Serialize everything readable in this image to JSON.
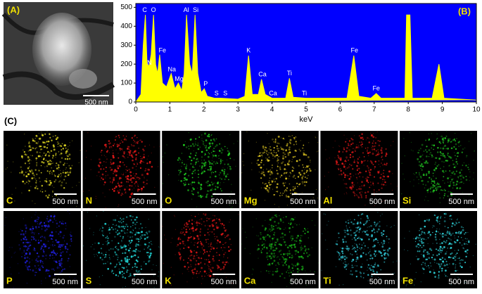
{
  "panel_a": {
    "label": "(A)",
    "scale_bar": "500 nm"
  },
  "chart_data": {
    "type": "area",
    "label": "(B)",
    "xlabel": "keV",
    "x": [
      0,
      0.15,
      0.22,
      0.28,
      0.33,
      0.39,
      0.45,
      0.52,
      0.58,
      0.64,
      0.7,
      0.78,
      0.9,
      1.04,
      1.15,
      1.25,
      1.35,
      1.42,
      1.49,
      1.58,
      1.66,
      1.74,
      1.82,
      1.92,
      2.01,
      2.1,
      2.31,
      2.5,
      3.0,
      3.2,
      3.31,
      3.42,
      3.6,
      3.69,
      3.8,
      4.0,
      4.4,
      4.51,
      4.62,
      5.0,
      6.2,
      6.4,
      6.55,
      6.9,
      7.06,
      7.2,
      7.9,
      7.95,
      8.05,
      8.12,
      8.7,
      8.9,
      9.05,
      10
    ],
    "values": [
      0,
      40,
      300,
      460,
      200,
      190,
      250,
      460,
      200,
      150,
      250,
      100,
      80,
      150,
      70,
      100,
      60,
      150,
      460,
      200,
      150,
      460,
      150,
      50,
      70,
      30,
      20,
      20,
      15,
      30,
      245,
      40,
      40,
      120,
      40,
      20,
      20,
      125,
      25,
      20,
      20,
      245,
      30,
      20,
      45,
      20,
      20,
      460,
      460,
      20,
      20,
      200,
      20,
      10
    ],
    "color": "#ffff00",
    "background": "#0000ff",
    "xlim": [
      0,
      10
    ],
    "xticks": [
      0,
      1,
      2,
      3,
      4,
      5,
      6,
      7,
      8,
      9,
      10
    ],
    "ylim": [
      0,
      520
    ],
    "yticks": [
      0,
      100,
      200,
      300,
      400,
      500
    ],
    "annotations": [
      {
        "text": "C",
        "x": 0.26,
        "y": 485
      },
      {
        "text": "O",
        "x": 0.52,
        "y": 485
      },
      {
        "text": "N",
        "x": 0.4,
        "y": 205
      },
      {
        "text": "Fe",
        "x": 0.78,
        "y": 270
      },
      {
        "text": "Na",
        "x": 1.06,
        "y": 170
      },
      {
        "text": "Mg",
        "x": 1.27,
        "y": 120
      },
      {
        "text": "Al",
        "x": 1.48,
        "y": 485
      },
      {
        "text": "Si",
        "x": 1.76,
        "y": 485
      },
      {
        "text": "P",
        "x": 2.05,
        "y": 95
      },
      {
        "text": "S",
        "x": 2.37,
        "y": 45
      },
      {
        "text": "S",
        "x": 2.63,
        "y": 45
      },
      {
        "text": "K",
        "x": 3.31,
        "y": 270
      },
      {
        "text": "Ca",
        "x": 3.72,
        "y": 145
      },
      {
        "text": "Ca",
        "x": 4.03,
        "y": 45
      },
      {
        "text": "Ti",
        "x": 4.51,
        "y": 150
      },
      {
        "text": "Ti",
        "x": 4.95,
        "y": 45
      },
      {
        "text": "Fe",
        "x": 6.42,
        "y": 270
      },
      {
        "text": "Fe",
        "x": 7.06,
        "y": 70
      }
    ]
  },
  "panel_c": {
    "label": "(C)",
    "maps": [
      {
        "element": "C",
        "color": "#d8d020",
        "scale_bar": "500 nm"
      },
      {
        "element": "N",
        "color": "#e01818",
        "scale_bar": "500 nm"
      },
      {
        "element": "O",
        "color": "#20d020",
        "scale_bar": "500 nm"
      },
      {
        "element": "Mg",
        "color": "#d8c020",
        "scale_bar": "500 nm"
      },
      {
        "element": "Al",
        "color": "#e01818",
        "scale_bar": "500 nm"
      },
      {
        "element": "Si",
        "color": "#20c020",
        "scale_bar": "500 nm"
      },
      {
        "element": "P",
        "color": "#2020e0",
        "scale_bar": "500 nm"
      },
      {
        "element": "S",
        "color": "#20d0d0",
        "scale_bar": "500 nm"
      },
      {
        "element": "K",
        "color": "#e01818",
        "scale_bar": "500 nm"
      },
      {
        "element": "Ca",
        "color": "#18b018",
        "scale_bar": "500 nm"
      },
      {
        "element": "Ti",
        "color": "#30c8d8",
        "scale_bar": "500 nm"
      },
      {
        "element": "Fe",
        "color": "#30d8e0",
        "scale_bar": "500 nm"
      }
    ]
  }
}
